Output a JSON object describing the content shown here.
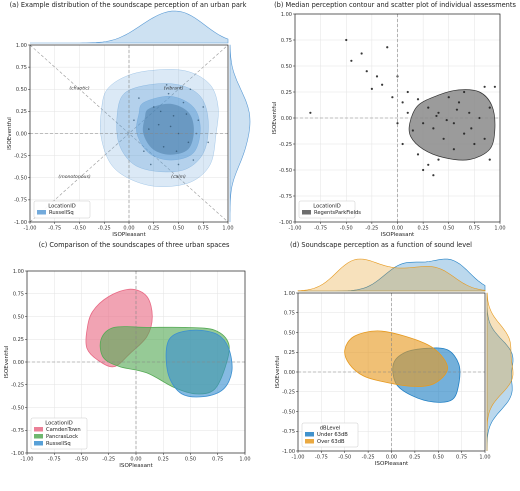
{
  "figure": {
    "panels": [
      {
        "title": "(a) Example distribution of the soundscape perception of an urban park",
        "xlabel": "ISOPleasant",
        "ylabel": "ISOEventful",
        "legend": {
          "title": "LocationID",
          "entries": [
            "RussellSq"
          ]
        }
      },
      {
        "title": "(b) Median perception contour and scatter plot of individual assessments",
        "xlabel": "ISOPleasant",
        "ylabel": "ISOEventful",
        "legend": {
          "title": "LocationID",
          "entries": [
            "RegentsParkFields"
          ]
        }
      },
      {
        "title": "(c) Comparison of the soundscapes of three urban spaces",
        "xlabel": "ISOPleasant",
        "ylabel": "ISOEventful",
        "legend": {
          "title": "LocationID",
          "entries": [
            "CamdenTown",
            "PancrasLock",
            "RussellSq"
          ]
        }
      },
      {
        "title": "(d) Soundscape perception as a function of sound level",
        "xlabel": "ISOPleasant",
        "ylabel": "ISOEventful",
        "legend": {
          "title": "dBLevel",
          "entries": [
            "Under 63dB",
            "Over 63dB"
          ]
        }
      }
    ]
  },
  "chart_data": [
    {
      "type": "scatter",
      "title": "(a) Example distribution of the soundscape perception of an urban park",
      "xlabel": "ISOPleasant",
      "ylabel": "ISOEventful",
      "xlim": [
        -1.0,
        1.0
      ],
      "ylim": [
        -1.0,
        1.0
      ],
      "xticks": [
        "-1.00",
        "-0.75",
        "-0.50",
        "-0.25",
        "0.00",
        "0.25",
        "0.50",
        "0.75",
        "1.00"
      ],
      "yticks": [
        "1.00",
        "0.75",
        "0.50",
        "0.25",
        "0.00",
        "-0.25",
        "-0.50",
        "-0.75",
        "-1.00"
      ],
      "annotations": [
        "(chaotic)",
        "(vibrant)",
        "(monotonous)",
        "(calm)"
      ],
      "legend": {
        "title": "LocationID",
        "position": "lower-left"
      },
      "series": [
        {
          "name": "RussellSq",
          "color": "#5b9bd5",
          "kde_levels": [
            {
              "alpha": 0.22,
              "outline": [
                [
                  -0.22,
                  0.5
                ],
                [
                  0.0,
                  0.66
                ],
                [
                  0.3,
                  0.72
                ],
                [
                  0.6,
                  0.7
                ],
                [
                  0.82,
                  0.55
                ],
                [
                  0.9,
                  0.3
                ],
                [
                  0.88,
                  0.0
                ],
                [
                  0.82,
                  -0.35
                ],
                [
                  0.62,
                  -0.55
                ],
                [
                  0.3,
                  -0.6
                ],
                [
                  0.02,
                  -0.52
                ],
                [
                  -0.18,
                  -0.35
                ],
                [
                  -0.28,
                  -0.05
                ],
                [
                  -0.28,
                  0.25
                ]
              ]
            },
            {
              "alpha": 0.3,
              "outline": [
                [
                  -0.05,
                  0.45
                ],
                [
                  0.2,
                  0.55
                ],
                [
                  0.5,
                  0.55
                ],
                [
                  0.72,
                  0.42
                ],
                [
                  0.8,
                  0.15
                ],
                [
                  0.76,
                  -0.2
                ],
                [
                  0.58,
                  -0.4
                ],
                [
                  0.3,
                  -0.43
                ],
                [
                  0.05,
                  -0.35
                ],
                [
                  -0.1,
                  -0.12
                ],
                [
                  -0.12,
                  0.2
                ]
              ]
            },
            {
              "alpha": 0.45,
              "outline": [
                [
                  0.15,
                  0.35
                ],
                [
                  0.42,
                  0.42
                ],
                [
                  0.65,
                  0.3
                ],
                [
                  0.72,
                  0.05
                ],
                [
                  0.65,
                  -0.22
                ],
                [
                  0.42,
                  -0.3
                ],
                [
                  0.2,
                  -0.22
                ],
                [
                  0.08,
                  0.0
                ],
                [
                  0.1,
                  0.22
                ]
              ]
            }
          ],
          "points": [
            [
              0.3,
              0.1
            ],
            [
              0.45,
              0.2
            ],
            [
              0.5,
              0.0
            ],
            [
              0.6,
              -0.1
            ],
            [
              0.35,
              -0.15
            ],
            [
              0.25,
              0.3
            ],
            [
              0.55,
              0.35
            ],
            [
              0.7,
              0.15
            ],
            [
              0.4,
              0.45
            ],
            [
              0.2,
              0.05
            ],
            [
              0.65,
              -0.3
            ],
            [
              0.15,
              -0.2
            ],
            [
              0.5,
              -0.35
            ],
            [
              0.75,
              0.3
            ],
            [
              0.1,
              0.4
            ],
            [
              0.42,
              0.08
            ],
            [
              0.58,
              0.22
            ],
            [
              0.32,
              0.25
            ],
            [
              0.48,
              -0.2
            ],
            [
              0.68,
              0.0
            ],
            [
              0.22,
              -0.35
            ],
            [
              0.05,
              0.15
            ],
            [
              0.38,
              0.55
            ],
            [
              0.8,
              -0.1
            ],
            [
              0.62,
              0.5
            ]
          ]
        }
      ],
      "marginal": {
        "x": "kde",
        "y": "kde"
      }
    },
    {
      "type": "scatter",
      "title": "(b) Median perception contour and scatter plot of individual assessments",
      "xlabel": "ISOPleasant",
      "ylabel": "ISOEventful",
      "xlim": [
        -1.0,
        1.0
      ],
      "ylim": [
        -1.0,
        1.0
      ],
      "xticks": [
        "-1.00",
        "-0.75",
        "-0.50",
        "-0.25",
        "0.00",
        "0.25",
        "0.50",
        "0.75",
        "1.00"
      ],
      "yticks": [
        "1.00",
        "0.75",
        "0.50",
        "0.25",
        "0.00",
        "-0.25",
        "-0.50",
        "-0.75",
        "-1.00"
      ],
      "legend": {
        "title": "LocationID",
        "position": "lower-left"
      },
      "series": [
        {
          "name": "RegentsParkFields",
          "color": "#555555",
          "median_contour": [
            [
              0.12,
              -0.05
            ],
            [
              0.2,
              0.12
            ],
            [
              0.4,
              0.22
            ],
            [
              0.6,
              0.27
            ],
            [
              0.8,
              0.25
            ],
            [
              0.92,
              0.12
            ],
            [
              0.95,
              -0.1
            ],
            [
              0.9,
              -0.3
            ],
            [
              0.7,
              -0.4
            ],
            [
              0.45,
              -0.38
            ],
            [
              0.25,
              -0.3
            ],
            [
              0.13,
              -0.18
            ]
          ],
          "points": [
            [
              -0.5,
              0.75
            ],
            [
              -0.35,
              0.62
            ],
            [
              -0.45,
              0.55
            ],
            [
              -0.3,
              0.45
            ],
            [
              -0.2,
              0.4
            ],
            [
              -0.15,
              0.32
            ],
            [
              -0.25,
              0.28
            ],
            [
              -0.1,
              0.68
            ],
            [
              -0.05,
              0.2
            ],
            [
              0.05,
              0.15
            ],
            [
              0.0,
              0.4
            ],
            [
              0.1,
              0.25
            ],
            [
              0.2,
              0.18
            ],
            [
              0.3,
              0.1
            ],
            [
              0.4,
              0.05
            ],
            [
              0.5,
              0.2
            ],
            [
              0.6,
              0.15
            ],
            [
              0.7,
              0.05
            ],
            [
              0.8,
              0.0
            ],
            [
              0.9,
              0.1
            ],
            [
              0.35,
              -0.1
            ],
            [
              0.45,
              -0.2
            ],
            [
              0.55,
              -0.05
            ],
            [
              0.65,
              -0.15
            ],
            [
              0.75,
              -0.25
            ],
            [
              0.85,
              -0.2
            ],
            [
              0.25,
              -0.05
            ],
            [
              0.15,
              -0.12
            ],
            [
              0.05,
              -0.25
            ],
            [
              0.0,
              -0.05
            ],
            [
              0.2,
              -0.35
            ],
            [
              0.3,
              -0.45
            ],
            [
              0.35,
              -0.55
            ],
            [
              0.25,
              -0.5
            ],
            [
              0.4,
              -0.4
            ],
            [
              0.55,
              -0.3
            ],
            [
              0.95,
              0.3
            ],
            [
              0.9,
              -0.4
            ],
            [
              0.65,
              0.25
            ],
            [
              0.85,
              0.3
            ],
            [
              -0.85,
              0.05
            ],
            [
              0.1,
              0.05
            ],
            [
              0.48,
              -0.02
            ],
            [
              0.72,
              -0.1
            ],
            [
              0.58,
              0.08
            ],
            [
              0.38,
              0.02
            ]
          ]
        }
      ]
    },
    {
      "type": "area",
      "title": "(c) Comparison of the soundscapes of three urban spaces",
      "xlabel": "ISOPleasant",
      "ylabel": "ISOEventful",
      "xlim": [
        -1.0,
        1.0
      ],
      "ylim": [
        -1.0,
        1.0
      ],
      "xticks": [
        "-1.00",
        "-0.75",
        "-0.50",
        "-0.25",
        "0.00",
        "0.25",
        "0.50",
        "0.75",
        "1.00"
      ],
      "yticks": [
        "1.00",
        "0.75",
        "0.50",
        "0.25",
        "0.00",
        "-0.25",
        "-0.50",
        "-0.75",
        "-1.00"
      ],
      "legend": {
        "title": "LocationID",
        "position": "lower-left"
      },
      "series": [
        {
          "name": "CamdenTown",
          "color": "#e86a85",
          "contour": [
            [
              -0.45,
              0.35
            ],
            [
              -0.4,
              0.55
            ],
            [
              -0.25,
              0.72
            ],
            [
              -0.05,
              0.8
            ],
            [
              0.1,
              0.72
            ],
            [
              0.15,
              0.5
            ],
            [
              0.1,
              0.28
            ],
            [
              -0.05,
              0.1
            ],
            [
              -0.2,
              -0.05
            ],
            [
              -0.35,
              0.02
            ],
            [
              -0.45,
              0.15
            ]
          ]
        },
        {
          "name": "PancrasLock",
          "color": "#55aa55",
          "contour": [
            [
              -0.32,
              0.25
            ],
            [
              -0.2,
              0.38
            ],
            [
              0.1,
              0.38
            ],
            [
              0.45,
              0.38
            ],
            [
              0.72,
              0.35
            ],
            [
              0.85,
              0.2
            ],
            [
              0.82,
              -0.05
            ],
            [
              0.72,
              -0.3
            ],
            [
              0.55,
              -0.35
            ],
            [
              0.35,
              -0.28
            ],
            [
              0.1,
              -0.12
            ],
            [
              -0.15,
              -0.05
            ],
            [
              -0.3,
              0.05
            ]
          ]
        },
        {
          "name": "RussellSq",
          "color": "#3a8fd0",
          "contour": [
            [
              0.28,
              0.15
            ],
            [
              0.35,
              0.3
            ],
            [
              0.55,
              0.35
            ],
            [
              0.75,
              0.3
            ],
            [
              0.85,
              0.15
            ],
            [
              0.88,
              -0.1
            ],
            [
              0.8,
              -0.3
            ],
            [
              0.62,
              -0.38
            ],
            [
              0.42,
              -0.35
            ],
            [
              0.3,
              -0.15
            ]
          ]
        }
      ]
    },
    {
      "type": "area",
      "title": "(d) Soundscape perception as a function of sound level",
      "xlabel": "ISOPleasant",
      "ylabel": "ISOEventful",
      "xlim": [
        -1.0,
        1.0
      ],
      "ylim": [
        -1.0,
        1.0
      ],
      "xticks": [
        "-1.00",
        "-0.75",
        "-0.50",
        "-0.25",
        "0.00",
        "0.25",
        "0.50",
        "0.75",
        "1.00"
      ],
      "yticks": [
        "1.00",
        "0.75",
        "0.50",
        "0.25",
        "0.00",
        "-0.25",
        "-0.50",
        "-0.75",
        "-1.00"
      ],
      "legend": {
        "title": "dBLevel",
        "position": "lower-left"
      },
      "series": [
        {
          "name": "Under 63dB",
          "color": "#1f7fc4",
          "contour": [
            [
              0.02,
              0.1
            ],
            [
              0.15,
              0.25
            ],
            [
              0.38,
              0.3
            ],
            [
              0.6,
              0.28
            ],
            [
              0.72,
              0.1
            ],
            [
              0.72,
              -0.15
            ],
            [
              0.65,
              -0.35
            ],
            [
              0.45,
              -0.38
            ],
            [
              0.22,
              -0.3
            ],
            [
              0.05,
              -0.15
            ]
          ]
        },
        {
          "name": "Over 63dB",
          "color": "#e69a20",
          "contour": [
            [
              -0.5,
              0.28
            ],
            [
              -0.4,
              0.45
            ],
            [
              -0.15,
              0.52
            ],
            [
              0.15,
              0.45
            ],
            [
              0.45,
              0.3
            ],
            [
              0.6,
              0.05
            ],
            [
              0.45,
              -0.15
            ],
            [
              0.2,
              -0.18
            ],
            [
              -0.1,
              -0.12
            ],
            [
              -0.3,
              -0.05
            ],
            [
              -0.45,
              0.1
            ]
          ]
        }
      ],
      "marginal": {
        "x": "kde",
        "y": "kde"
      }
    }
  ]
}
